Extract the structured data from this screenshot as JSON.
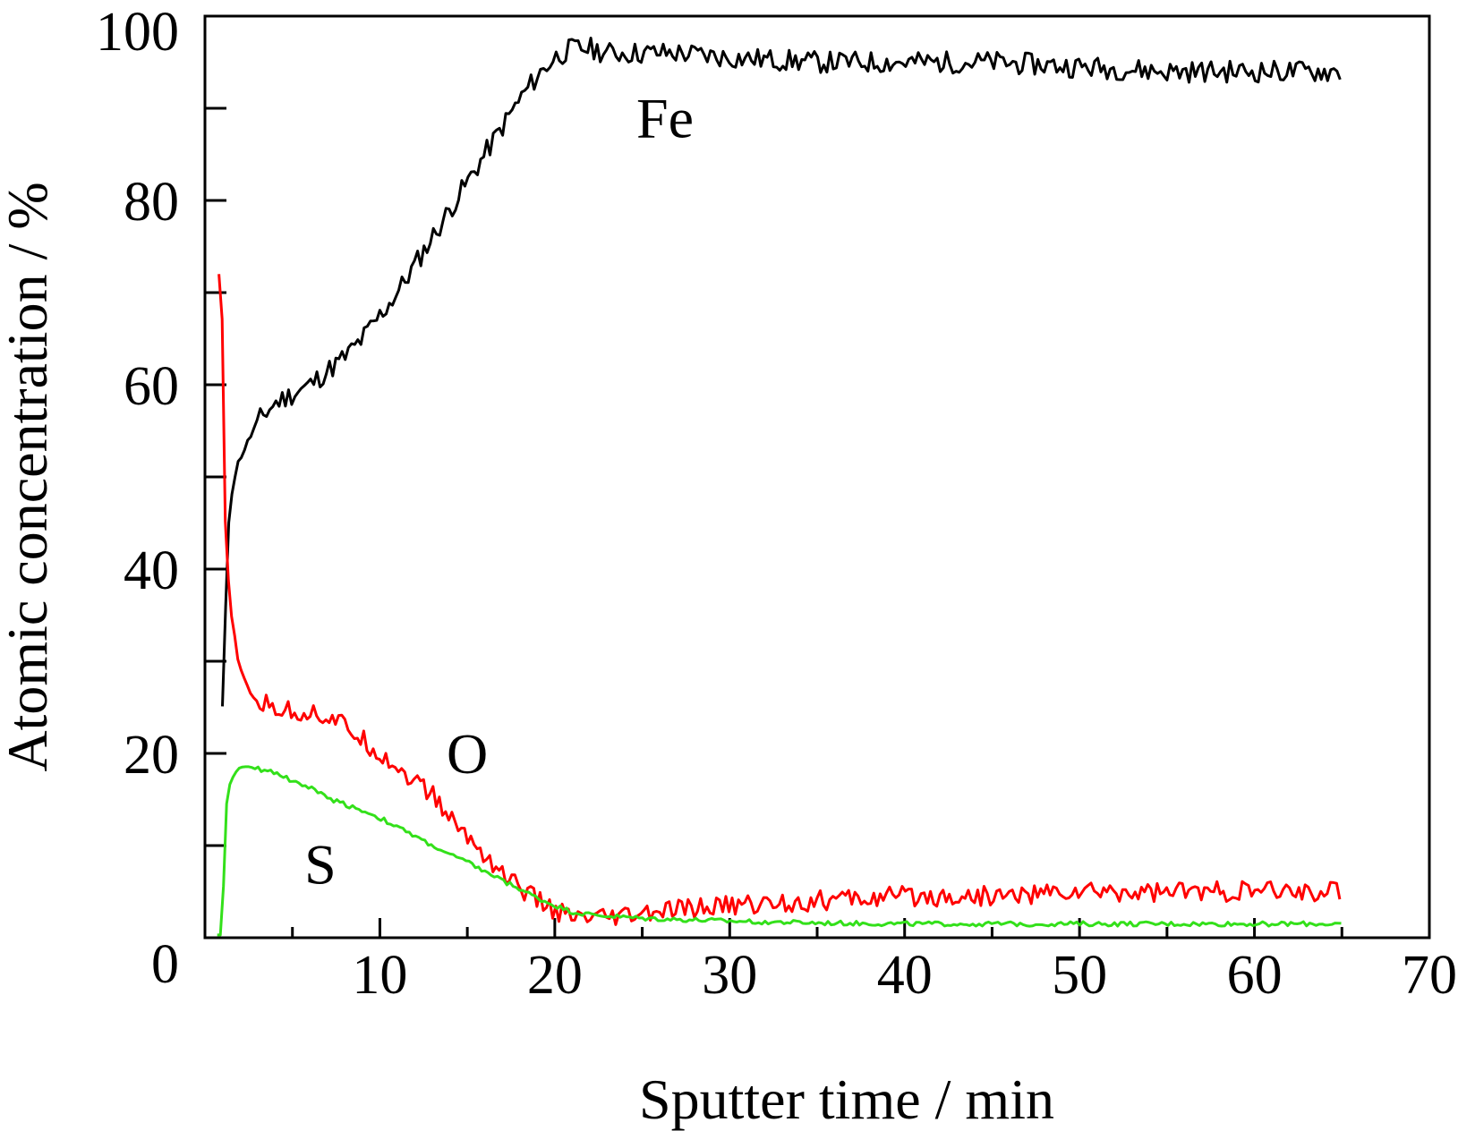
{
  "chart_data": {
    "type": "line",
    "xlabel": "Sputter time / min",
    "ylabel": "Atomic concentration / %",
    "xlim": [
      0,
      70
    ],
    "ylim": [
      0,
      100
    ],
    "x_ticks": [
      0,
      10,
      20,
      30,
      40,
      50,
      60,
      70
    ],
    "x_tick_labels": [
      "",
      "10",
      "20",
      "30",
      "40",
      "50",
      "60",
      "70"
    ],
    "x_minor_ticks": [
      5,
      15,
      25,
      35,
      45,
      55,
      65
    ],
    "y_ticks": [
      0,
      20,
      40,
      60,
      80,
      100
    ],
    "y_tick_labels": [
      "0",
      "20",
      "40",
      "60",
      "80",
      "100"
    ],
    "y_minor_ticks": [
      10,
      30,
      50,
      70,
      90
    ],
    "grid": false,
    "legend": "none",
    "series": [
      {
        "name": "Fe",
        "color": "#000000",
        "noise": 1.2,
        "x": [
          1.0,
          1.1,
          1.2,
          1.3,
          1.5,
          1.8,
          2.0,
          2.5,
          3.0,
          3.5,
          4.0,
          5.0,
          6.0,
          7.0,
          8.0,
          9.0,
          10.0,
          11.0,
          12.0,
          13.0,
          14.0,
          15.0,
          16.0,
          17.0,
          18.0,
          19.0,
          20.0,
          21.0,
          22.0,
          23.0,
          25.0,
          27.0,
          30.0,
          35.0,
          40.0,
          45.0,
          50.0,
          55.0,
          60.0,
          65.0
        ],
        "y": [
          25,
          30,
          37,
          44,
          48,
          51,
          52,
          54,
          56,
          57,
          58,
          59,
          60,
          61.5,
          63,
          65,
          67.5,
          70,
          73,
          76,
          79,
          82,
          85,
          88,
          91,
          93.5,
          95.5,
          96.5,
          96.5,
          96,
          96,
          96,
          95.5,
          95,
          95,
          95,
          94.5,
          94,
          94,
          94
        ]
      },
      {
        "name": "O",
        "color": "#ff0000",
        "noise": 1.1,
        "x": [
          0.8,
          0.9,
          1.0,
          1.1,
          1.2,
          1.4,
          1.6,
          1.8,
          2.0,
          2.5,
          3.0,
          4.0,
          5.0,
          6.0,
          7.0,
          8.0,
          9.0,
          10.0,
          11.0,
          12.0,
          13.0,
          14.0,
          15.0,
          16.0,
          17.0,
          18.0,
          19.0,
          20.0,
          21.0,
          22.0,
          23.0,
          25.0,
          27.0,
          30.0,
          35.0,
          40.0,
          45.0,
          50.0,
          55.0,
          60.0,
          65.0
        ],
        "y": [
          72,
          74,
          65,
          50,
          42,
          37,
          34,
          31,
          29,
          27,
          25.5,
          25,
          24.5,
          24.5,
          24,
          23,
          21.5,
          20,
          18.5,
          17,
          15.5,
          13,
          11,
          9,
          7,
          5.5,
          4,
          3,
          2,
          2,
          2,
          2.5,
          3,
          3.5,
          4,
          4.5,
          4.5,
          5,
          5,
          5,
          5
        ]
      },
      {
        "name": "S",
        "color": "#33e01a",
        "noise": 0.25,
        "x": [
          0.7,
          0.9,
          1.0,
          1.1,
          1.2,
          1.4,
          1.6,
          1.8,
          2.0,
          2.5,
          3.0,
          4.0,
          5.0,
          6.0,
          7.0,
          8.0,
          9.0,
          10.0,
          11.0,
          12.0,
          13.0,
          14.0,
          15.0,
          16.0,
          17.0,
          18.0,
          19.0,
          20.0,
          21.0,
          22.0,
          25.0,
          30.0,
          35.0,
          40.0,
          45.0,
          50.0,
          55.0,
          60.0,
          65.0
        ],
        "y": [
          0,
          0,
          2,
          8,
          14,
          16.5,
          17.5,
          18,
          18.5,
          18.5,
          18.3,
          18,
          17,
          16.3,
          15.2,
          14.5,
          13.8,
          13,
          12,
          11,
          10,
          9,
          8.2,
          7.2,
          6.2,
          5.3,
          4.3,
          3.5,
          2.8,
          2.5,
          2.1,
          1.8,
          1.6,
          1.5,
          1.5,
          1.5,
          1.5,
          1.5,
          1.5
        ]
      }
    ],
    "annotations": [
      {
        "text": "Fe",
        "x": 26.3,
        "y": 89
      },
      {
        "text": "O",
        "x": 15.0,
        "y": 20
      },
      {
        "text": "S",
        "x": 6.6,
        "y": 8
      }
    ]
  }
}
